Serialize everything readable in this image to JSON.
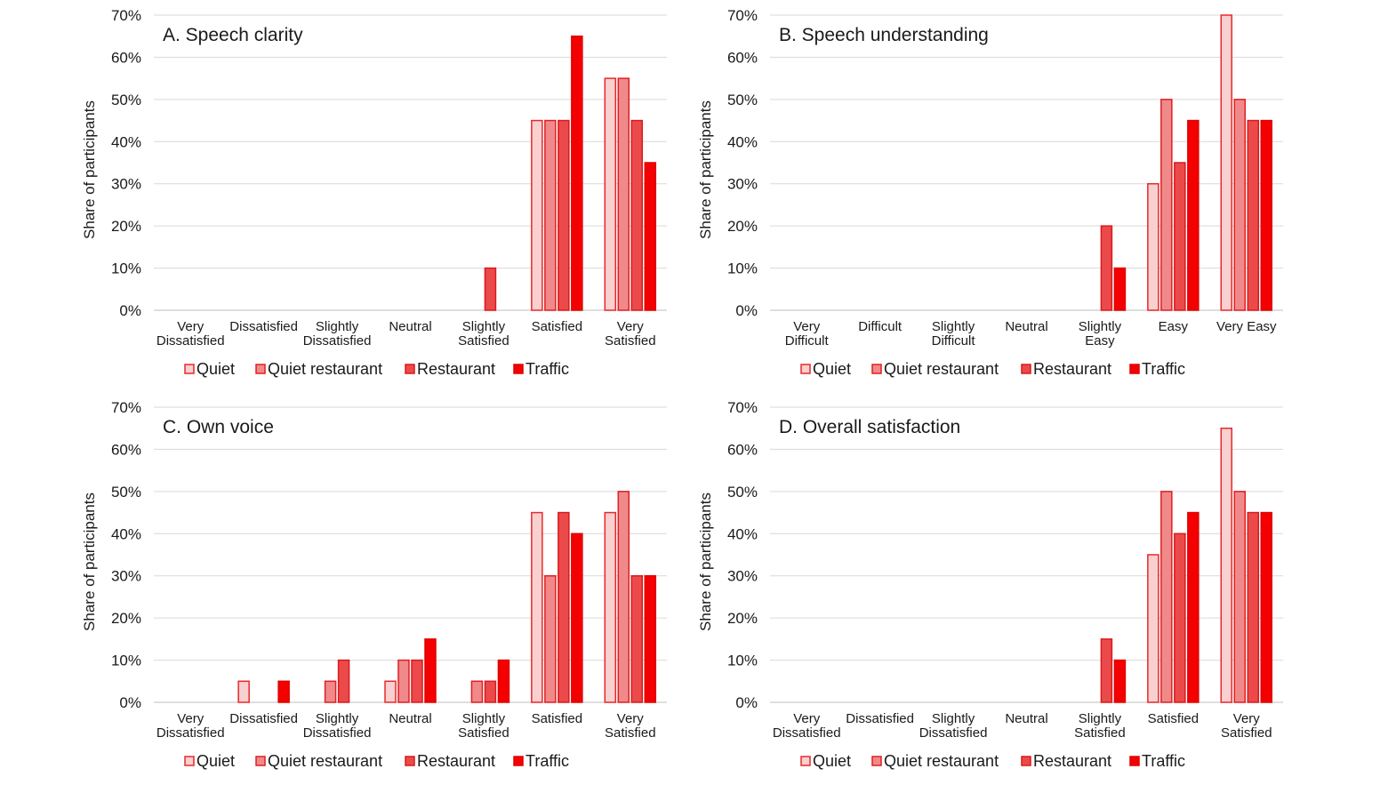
{
  "series_styles": [
    {
      "fill": "#f9d0d0",
      "stroke": "#e8282b"
    },
    {
      "fill": "#f08a8a",
      "stroke": "#e01f22"
    },
    {
      "fill": "#ec4a4a",
      "stroke": "#d91a1d"
    },
    {
      "fill": "#f40000",
      "stroke": "#e00000"
    }
  ],
  "legend": [
    "Quiet",
    "Quiet restaurant",
    "Restaurant",
    "Traffic"
  ],
  "chart_data": [
    {
      "type": "bar",
      "title": "A. Speech clarity",
      "ylabel": "Share of participants",
      "ylim": [
        0,
        70
      ],
      "yticks": [
        "0%",
        "10%",
        "20%",
        "30%",
        "40%",
        "50%",
        "60%",
        "70%"
      ],
      "categories": [
        [
          "Very",
          "Dissatisfied"
        ],
        [
          "Dissatisfied"
        ],
        [
          "Slightly",
          "Dissatisfied"
        ],
        [
          "Neutral"
        ],
        [
          "Slightly",
          "Satisfied"
        ],
        [
          "Satisfied"
        ],
        [
          "Very",
          "Satisfied"
        ]
      ],
      "series": [
        {
          "name": "Quiet",
          "values": [
            0,
            0,
            0,
            0,
            0,
            45,
            55
          ]
        },
        {
          "name": "Quiet restaurant",
          "values": [
            0,
            0,
            0,
            0,
            0,
            45,
            55
          ]
        },
        {
          "name": "Restaurant",
          "values": [
            0,
            0,
            0,
            0,
            10,
            45,
            45
          ]
        },
        {
          "name": "Traffic",
          "values": [
            0,
            0,
            0,
            0,
            0,
            65,
            35
          ]
        }
      ]
    },
    {
      "type": "bar",
      "title": "B. Speech understanding",
      "ylabel": "Share of participants",
      "ylim": [
        0,
        70
      ],
      "yticks": [
        "0%",
        "10%",
        "20%",
        "30%",
        "40%",
        "50%",
        "60%",
        "70%"
      ],
      "categories": [
        [
          "Very",
          "Difficult"
        ],
        [
          "Difficult"
        ],
        [
          "Slightly",
          "Difficult"
        ],
        [
          "Neutral"
        ],
        [
          "Slightly",
          "Easy"
        ],
        [
          "Easy"
        ],
        [
          "Very Easy"
        ]
      ],
      "series": [
        {
          "name": "Quiet",
          "values": [
            0,
            0,
            0,
            0,
            0,
            30,
            70
          ]
        },
        {
          "name": "Quiet restaurant",
          "values": [
            0,
            0,
            0,
            0,
            0,
            50,
            50
          ]
        },
        {
          "name": "Restaurant",
          "values": [
            0,
            0,
            0,
            0,
            20,
            35,
            45
          ]
        },
        {
          "name": "Traffic",
          "values": [
            0,
            0,
            0,
            0,
            10,
            45,
            45
          ]
        }
      ]
    },
    {
      "type": "bar",
      "title": "C. Own voice",
      "ylabel": "Share of participants",
      "ylim": [
        0,
        70
      ],
      "yticks": [
        "0%",
        "10%",
        "20%",
        "30%",
        "40%",
        "50%",
        "60%",
        "70%"
      ],
      "categories": [
        [
          "Very",
          "Dissatisfied"
        ],
        [
          "Dissatisfied"
        ],
        [
          "Slightly",
          "Dissatisfied"
        ],
        [
          "Neutral"
        ],
        [
          "Slightly",
          "Satisfied"
        ],
        [
          "Satisfied"
        ],
        [
          "Very",
          "Satisfied"
        ]
      ],
      "series": [
        {
          "name": "Quiet",
          "values": [
            0,
            5,
            0,
            5,
            0,
            45,
            45
          ]
        },
        {
          "name": "Quiet restaurant",
          "values": [
            0,
            0,
            5,
            10,
            5,
            30,
            50
          ]
        },
        {
          "name": "Restaurant",
          "values": [
            0,
            0,
            10,
            10,
            5,
            45,
            30
          ]
        },
        {
          "name": "Traffic",
          "values": [
            0,
            5,
            0,
            15,
            10,
            40,
            30
          ]
        }
      ]
    },
    {
      "type": "bar",
      "title": "D. Overall satisfaction",
      "ylabel": "Share of participants",
      "ylim": [
        0,
        70
      ],
      "yticks": [
        "0%",
        "10%",
        "20%",
        "30%",
        "40%",
        "50%",
        "60%",
        "70%"
      ],
      "categories": [
        [
          "Very",
          "Dissatisfied"
        ],
        [
          "Dissatisfied"
        ],
        [
          "Slightly",
          "Dissatisfied"
        ],
        [
          "Neutral"
        ],
        [
          "Slightly",
          "Satisfied"
        ],
        [
          "Satisfied"
        ],
        [
          "Very",
          "Satisfied"
        ]
      ],
      "series": [
        {
          "name": "Quiet",
          "values": [
            0,
            0,
            0,
            0,
            0,
            35,
            65
          ]
        },
        {
          "name": "Quiet restaurant",
          "values": [
            0,
            0,
            0,
            0,
            0,
            50,
            50
          ]
        },
        {
          "name": "Restaurant",
          "values": [
            0,
            0,
            0,
            0,
            15,
            40,
            45
          ]
        },
        {
          "name": "Traffic",
          "values": [
            0,
            0,
            0,
            0,
            10,
            45,
            45
          ]
        }
      ]
    }
  ]
}
